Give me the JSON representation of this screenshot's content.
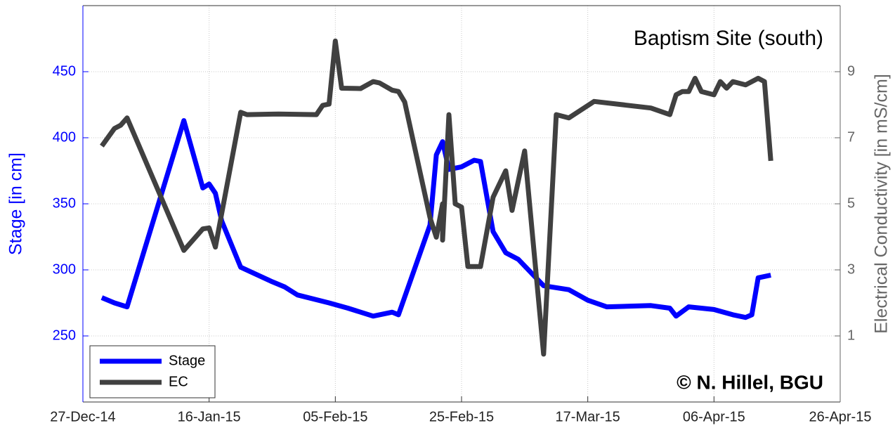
{
  "chart_data": {
    "type": "line",
    "title": "Baptism Site (south)",
    "annotation": "© N. Hillel, BGU",
    "ylabel": "Stage [in cm]",
    "y2label": "Electrical Conductivity [in mS/cm]",
    "xlim": [
      "2014-12-27",
      "2015-04-26"
    ],
    "xticks": [
      {
        "value": "2014-12-27",
        "label": "27-Dec-14"
      },
      {
        "value": "2015-01-16",
        "label": "16-Jan-15"
      },
      {
        "value": "2015-02-05",
        "label": "05-Feb-15"
      },
      {
        "value": "2015-02-25",
        "label": "25-Feb-15"
      },
      {
        "value": "2015-03-17",
        "label": "17-Mar-15"
      },
      {
        "value": "2015-04-06",
        "label": "06-Apr-15"
      },
      {
        "value": "2015-04-26",
        "label": "26-Apr-15"
      }
    ],
    "ylim": [
      200,
      500
    ],
    "yticks": [
      250,
      300,
      350,
      400,
      450
    ],
    "y2lim": [
      -1,
      11
    ],
    "y2ticks": [
      1,
      3,
      5,
      7,
      9
    ],
    "grid": true,
    "legend": "lower left",
    "series": [
      {
        "name": "Stage",
        "color": "#0000ff",
        "x": [
          "2014-12-30",
          "2015-01-01",
          "2015-01-03",
          "2015-01-12",
          "2015-01-15",
          "2015-01-16",
          "2015-01-17",
          "2015-01-18",
          "2015-01-21",
          "2015-01-26",
          "2015-01-28",
          "2015-01-30",
          "2015-02-04",
          "2015-02-07",
          "2015-02-11",
          "2015-02-14",
          "2015-02-15",
          "2015-02-20",
          "2015-02-21",
          "2015-02-22",
          "2015-02-23",
          "2015-02-25",
          "2015-02-27",
          "2015-02-28",
          "2015-03-02",
          "2015-03-04",
          "2015-03-06",
          "2015-03-10",
          "2015-03-14",
          "2015-03-17",
          "2015-03-20",
          "2015-03-27",
          "2015-03-30",
          "2015-03-31",
          "2015-04-02",
          "2015-04-06",
          "2015-04-09",
          "2015-04-11",
          "2015-04-12",
          "2015-04-13",
          "2015-04-15"
        ],
        "values": [
          279,
          275,
          272,
          413,
          362,
          365,
          358,
          337,
          302,
          291,
          287,
          281,
          275,
          271,
          265,
          268,
          266,
          334,
          387,
          397,
          376,
          378,
          383,
          382,
          329,
          313,
          308,
          288,
          285,
          277,
          272,
          273,
          271,
          265,
          272,
          270,
          266,
          264,
          266,
          294,
          296
        ]
      },
      {
        "name": "EC",
        "color": "#404040",
        "axis": "y2",
        "x": [
          "2014-12-30",
          "2015-01-01",
          "2015-01-02",
          "2015-01-03",
          "2015-01-12",
          "2015-01-15",
          "2015-01-16",
          "2015-01-17",
          "2015-01-21",
          "2015-01-22",
          "2015-01-27",
          "2015-02-02",
          "2015-02-03",
          "2015-02-04",
          "2015-02-05",
          "2015-02-06",
          "2015-02-09",
          "2015-02-11",
          "2015-02-12",
          "2015-02-14",
          "2015-02-15",
          "2015-02-16",
          "2015-02-20",
          "2015-02-21",
          "2015-02-22",
          "2015-02-22",
          "2015-02-23",
          "2015-02-24",
          "2015-02-25",
          "2015-02-26",
          "2015-02-28",
          "2015-03-02",
          "2015-03-04",
          "2015-03-05",
          "2015-03-07",
          "2015-03-10",
          "2015-03-12",
          "2015-03-14",
          "2015-03-18",
          "2015-03-27",
          "2015-03-30",
          "2015-03-31",
          "2015-04-01",
          "2015-04-02",
          "2015-04-03",
          "2015-04-04",
          "2015-04-06",
          "2015-04-07",
          "2015-04-08",
          "2015-04-09",
          "2015-04-11",
          "2015-04-13",
          "2015-04-14",
          "2015-04-15"
        ],
        "values": [
          6.75,
          7.28,
          7.38,
          7.6,
          3.59,
          4.24,
          4.27,
          3.69,
          7.77,
          7.7,
          7.72,
          7.7,
          7.98,
          8.02,
          9.93,
          8.5,
          8.49,
          8.7,
          8.66,
          8.44,
          8.4,
          8.08,
          4.58,
          3.99,
          5.0,
          3.9,
          7.7,
          5.0,
          4.9,
          3.1,
          3.1,
          5.2,
          6.0,
          4.8,
          6.6,
          0.45,
          7.7,
          7.6,
          8.1,
          7.9,
          7.7,
          8.3,
          8.4,
          8.4,
          8.8,
          8.4,
          8.3,
          8.7,
          8.5,
          8.7,
          8.6,
          8.8,
          8.7,
          6.3
        ]
      }
    ]
  }
}
